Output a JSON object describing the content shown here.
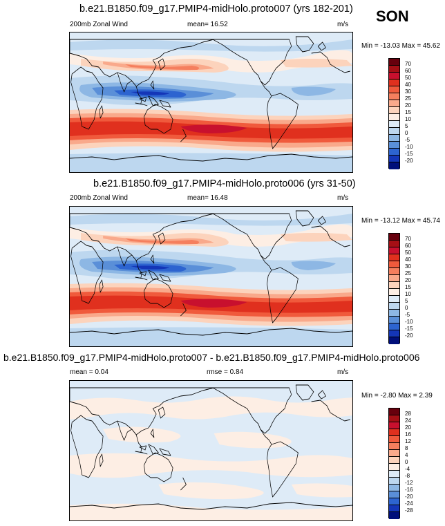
{
  "season": "SON",
  "panels": [
    {
      "title": "b.e21.B1850.f09_g17.PMIP4-midHolo.proto007 (yrs 182-201)",
      "left_label": "200mb Zonal Wind",
      "center_label": "mean=  16.52",
      "units": "m/s",
      "minmax": "Min = -13.03 Max = 45.62",
      "colorbar_labels": [
        "70",
        "60",
        "50",
        "40",
        "30",
        "25",
        "20",
        "15",
        "10",
        "5",
        "0",
        "-5",
        "-10",
        "-15",
        "-20"
      ]
    },
    {
      "title": "b.e21.B1850.f09_g17.PMIP4-midHolo.proto006 (yrs 31-50)",
      "left_label": "200mb Zonal Wind",
      "center_label": "mean=  16.48",
      "units": "m/s",
      "minmax": "Min = -13.12 Max = 45.74",
      "colorbar_labels": [
        "70",
        "60",
        "50",
        "40",
        "30",
        "25",
        "20",
        "15",
        "10",
        "5",
        "0",
        "-5",
        "-10",
        "-15",
        "-20"
      ]
    },
    {
      "title": "b.e21.B1850.f09_g17.PMIP4-midHolo.proto007 - b.e21.B1850.f09_g17.PMIP4-midHolo.proto006",
      "left_label": "mean =   0.04",
      "center_label": "rmse =   0.84",
      "units": "m/s",
      "minmax": "Min = -2.80 Max =  2.39",
      "colorbar_labels": [
        "28",
        "24",
        "20",
        "16",
        "12",
        "8",
        "4",
        "0",
        "-4",
        "-8",
        "-12",
        "-16",
        "-20",
        "-24",
        "-28"
      ]
    }
  ],
  "colors": {
    "wind_scale": [
      "#67000d",
      "#a50f15",
      "#c8102e",
      "#e0301e",
      "#f05a3c",
      "#f57f5e",
      "#f9a98b",
      "#fcd3bc",
      "#fdeee4",
      "#deebf7",
      "#bdd7ef",
      "#8db7e4",
      "#5a8fd8",
      "#2d64d0",
      "#1436b8",
      "#000f7a"
    ],
    "diff_scale": [
      "#67000d",
      "#a50f15",
      "#c8102e",
      "#e0301e",
      "#f05a3c",
      "#f57f5e",
      "#f9a98b",
      "#fcd3bc",
      "#fdeee4",
      "#deebf7",
      "#bdd7ef",
      "#8db7e4",
      "#5a8fd8",
      "#2d64d0",
      "#1436b8",
      "#000f7a"
    ]
  }
}
